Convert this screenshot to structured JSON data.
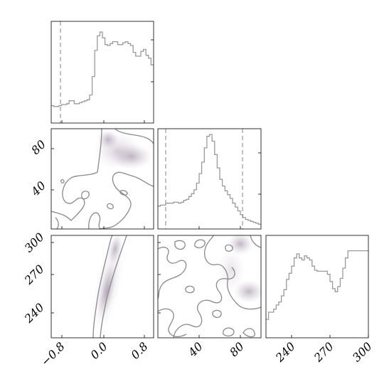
{
  "chart_data": {
    "type": "corner",
    "title": "",
    "parameters": [
      {
        "index": 0,
        "range": [
          -1.0,
          1.0
        ],
        "ticks": [
          -0.8,
          0.0,
          0.8
        ],
        "tick_labels": [
          "−0.8",
          "0.0",
          "0.8"
        ]
      },
      {
        "index": 1,
        "range": [
          0,
          100
        ],
        "ticks": [
          40,
          80
        ],
        "tick_labels": [
          "40",
          "80"
        ]
      },
      {
        "index": 2,
        "range": [
          220,
          300
        ],
        "ticks": [
          240,
          270,
          300
        ],
        "tick_labels": [
          "240",
          "270",
          "300"
        ]
      }
    ],
    "marginals": [
      {
        "param": 0,
        "bin_edges": [
          -1.0,
          -0.95,
          -0.9,
          -0.85,
          -0.8,
          -0.75,
          -0.7,
          -0.65,
          -0.6,
          -0.55,
          -0.5,
          -0.45,
          -0.4,
          -0.35,
          -0.3,
          -0.25,
          -0.2,
          -0.15,
          -0.1,
          -0.05,
          0.0,
          0.05,
          0.1,
          0.15,
          0.2,
          0.25,
          0.3,
          0.35,
          0.4,
          0.45,
          0.5,
          0.55,
          0.6,
          0.65,
          0.7,
          0.75,
          0.8,
          0.85,
          0.9,
          0.95,
          1.0
        ],
        "counts": [
          18,
          17,
          17,
          18,
          19,
          19,
          20,
          23,
          23,
          20,
          20,
          21,
          22,
          23,
          24,
          29,
          48,
          75,
          90,
          94,
          88,
          81,
          80,
          82,
          84,
          84,
          81,
          81,
          83,
          84,
          82,
          80,
          73,
          69,
          69,
          74,
          76,
          70,
          67,
          60
        ],
        "markers": [
          -0.8
        ]
      },
      {
        "param": 1,
        "bin_edges": [
          0,
          2.5,
          5,
          7.5,
          10,
          12.5,
          15,
          17.5,
          20,
          22.5,
          25,
          27.5,
          30,
          32.5,
          35,
          37.5,
          40,
          42.5,
          45,
          47.5,
          50,
          52.5,
          55,
          57.5,
          60,
          62.5,
          65,
          67.5,
          70,
          72.5,
          75,
          77.5,
          80,
          82.5,
          85,
          87.5,
          90,
          92.5,
          95,
          97.5,
          100
        ],
        "counts": [
          24,
          25,
          25,
          27,
          27,
          27,
          28,
          28,
          27,
          28,
          30,
          31,
          34,
          37,
          41,
          48,
          58,
          70,
          85,
          97,
          99,
          92,
          78,
          64,
          52,
          45,
          40,
          36,
          32,
          27,
          23,
          19,
          15,
          12,
          10,
          9,
          8,
          7,
          6,
          5
        ],
        "markers": [
          7,
          80
        ]
      },
      {
        "param": 2,
        "bin_edges": [
          220,
          222,
          224,
          226,
          228,
          230,
          232,
          234,
          236,
          238,
          240,
          242,
          244,
          246,
          248,
          250,
          252,
          254,
          256,
          258,
          260,
          262,
          264,
          266,
          268,
          270,
          272,
          274,
          276,
          278,
          280,
          282,
          284,
          286,
          288,
          290,
          292,
          294,
          296,
          298,
          300
        ],
        "counts": [
          18,
          25,
          25,
          28,
          32,
          35,
          41,
          47,
          57,
          63,
          70,
          78,
          82,
          78,
          76,
          80,
          78,
          76,
          70,
          66,
          65,
          65,
          65,
          65,
          62,
          55,
          48,
          45,
          50,
          58,
          68,
          78,
          85,
          85,
          85,
          85,
          85,
          85,
          85,
          85
        ],
        "markers": []
      }
    ]
  }
}
